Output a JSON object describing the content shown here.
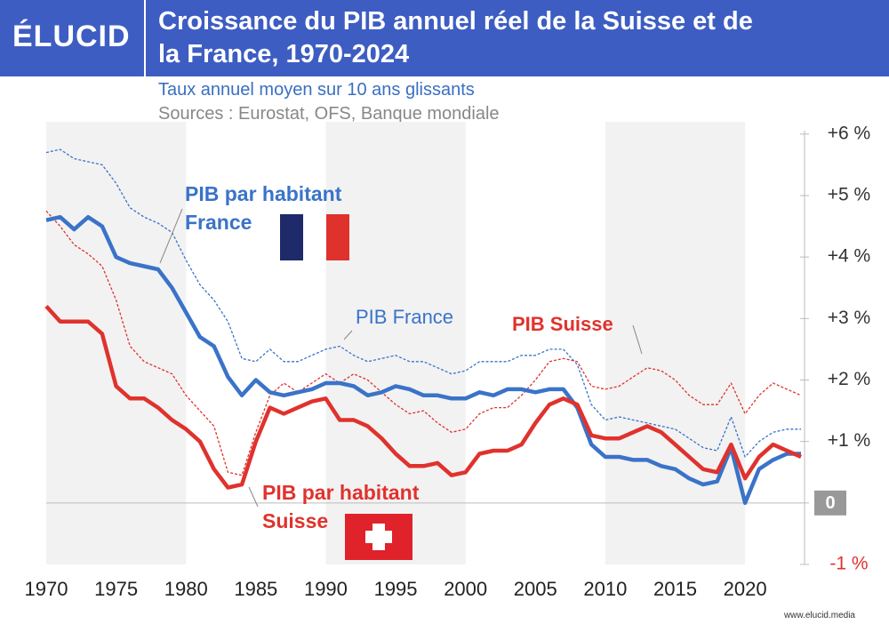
{
  "header": {
    "logo": "ÉLUCID",
    "title": "Croissance du PIB annuel réel de la Suisse et de la France, 1970-2024",
    "subtitle": "Taux annuel moyen sur 10 ans glissants",
    "sources": "Sources : Eurostat, OFS, Banque mondiale"
  },
  "footer": "www.elucid.media",
  "chart_data": {
    "type": "line",
    "x": [
      1970,
      1971,
      1972,
      1973,
      1974,
      1975,
      1976,
      1977,
      1978,
      1979,
      1980,
      1981,
      1982,
      1983,
      1984,
      1985,
      1986,
      1987,
      1988,
      1989,
      1990,
      1991,
      1992,
      1993,
      1994,
      1995,
      1996,
      1997,
      1998,
      1999,
      2000,
      2001,
      2002,
      2003,
      2004,
      2005,
      2006,
      2007,
      2008,
      2009,
      2010,
      2011,
      2012,
      2013,
      2014,
      2015,
      2016,
      2017,
      2018,
      2019,
      2020,
      2021,
      2022,
      2023,
      2024
    ],
    "series": [
      {
        "name": "PIB France",
        "color": "#3a73c8",
        "dashed": true,
        "width": 1.3,
        "values": [
          5.7,
          5.75,
          5.6,
          5.55,
          5.5,
          5.2,
          4.8,
          4.65,
          4.55,
          4.4,
          3.95,
          3.55,
          3.3,
          2.95,
          2.35,
          2.3,
          2.5,
          2.3,
          2.3,
          2.4,
          2.5,
          2.55,
          2.4,
          2.3,
          2.35,
          2.4,
          2.3,
          2.3,
          2.2,
          2.1,
          2.15,
          2.3,
          2.3,
          2.3,
          2.4,
          2.4,
          2.5,
          2.5,
          2.25,
          1.6,
          1.35,
          1.4,
          1.35,
          1.3,
          1.25,
          1.2,
          1.05,
          0.9,
          0.85,
          1.4,
          0.75,
          1.0,
          1.15,
          1.2,
          1.2
        ]
      },
      {
        "name": "PIB Suisse",
        "color": "#e0322d",
        "dashed": true,
        "width": 1.3,
        "values": [
          4.75,
          4.5,
          4.2,
          4.05,
          3.85,
          3.3,
          2.55,
          2.3,
          2.2,
          2.1,
          1.75,
          1.5,
          1.25,
          0.5,
          0.45,
          1.15,
          1.75,
          1.95,
          1.8,
          1.95,
          2.1,
          1.95,
          2.1,
          2.0,
          1.8,
          1.6,
          1.45,
          1.5,
          1.3,
          1.15,
          1.2,
          1.45,
          1.55,
          1.55,
          1.75,
          2.0,
          2.3,
          2.35,
          2.3,
          1.9,
          1.85,
          1.9,
          2.05,
          2.2,
          2.15,
          2.0,
          1.75,
          1.6,
          1.6,
          1.95,
          1.45,
          1.75,
          1.95,
          1.85,
          1.75
        ]
      },
      {
        "name_lines": [
          "PIB par habitant",
          "France"
        ],
        "color": "#3a73c8",
        "dashed": false,
        "width": 4.5,
        "values": [
          4.6,
          4.65,
          4.45,
          4.65,
          4.5,
          4.0,
          3.9,
          3.85,
          3.8,
          3.5,
          3.1,
          2.7,
          2.55,
          2.05,
          1.75,
          2.0,
          1.8,
          1.75,
          1.8,
          1.85,
          1.95,
          1.95,
          1.9,
          1.75,
          1.8,
          1.9,
          1.85,
          1.75,
          1.75,
          1.7,
          1.7,
          1.8,
          1.75,
          1.85,
          1.85,
          1.8,
          1.85,
          1.85,
          1.55,
          0.95,
          0.75,
          0.75,
          0.7,
          0.7,
          0.6,
          0.55,
          0.4,
          0.3,
          0.35,
          0.9,
          0.0,
          0.55,
          0.7,
          0.8,
          0.8
        ]
      },
      {
        "name_lines": [
          "PIB par habitant",
          "Suisse"
        ],
        "color": "#e0322d",
        "dashed": false,
        "width": 4.5,
        "values": [
          3.2,
          2.95,
          2.95,
          2.95,
          2.75,
          1.9,
          1.7,
          1.7,
          1.55,
          1.35,
          1.2,
          1.0,
          0.55,
          0.25,
          0.3,
          1.0,
          1.55,
          1.45,
          1.55,
          1.65,
          1.7,
          1.35,
          1.35,
          1.25,
          1.05,
          0.8,
          0.6,
          0.6,
          0.65,
          0.45,
          0.5,
          0.8,
          0.85,
          0.85,
          0.95,
          1.3,
          1.6,
          1.7,
          1.6,
          1.1,
          1.05,
          1.05,
          1.15,
          1.25,
          1.15,
          0.95,
          0.75,
          0.55,
          0.5,
          0.95,
          0.4,
          0.75,
          0.95,
          0.85,
          0.75
        ]
      }
    ],
    "xlim": [
      1970,
      2024
    ],
    "xticks": [
      1970,
      1975,
      1980,
      1985,
      1990,
      1995,
      2000,
      2005,
      2010,
      2015,
      2020
    ],
    "ylim": [
      -1,
      6.2
    ],
    "yticks": [
      {
        "value": -1,
        "label": "-1 %"
      },
      0,
      {
        "value": 1,
        "label": "+1 %"
      },
      {
        "value": 2,
        "label": "+2 %"
      },
      {
        "value": 3,
        "label": "+3 %"
      },
      {
        "value": 4,
        "label": "+4 %"
      },
      {
        "value": 5,
        "label": "+5 %"
      },
      {
        "value": 6,
        "label": "+6 %"
      }
    ],
    "y_axis_side": "right",
    "zero_line": true,
    "grid": false
  }
}
